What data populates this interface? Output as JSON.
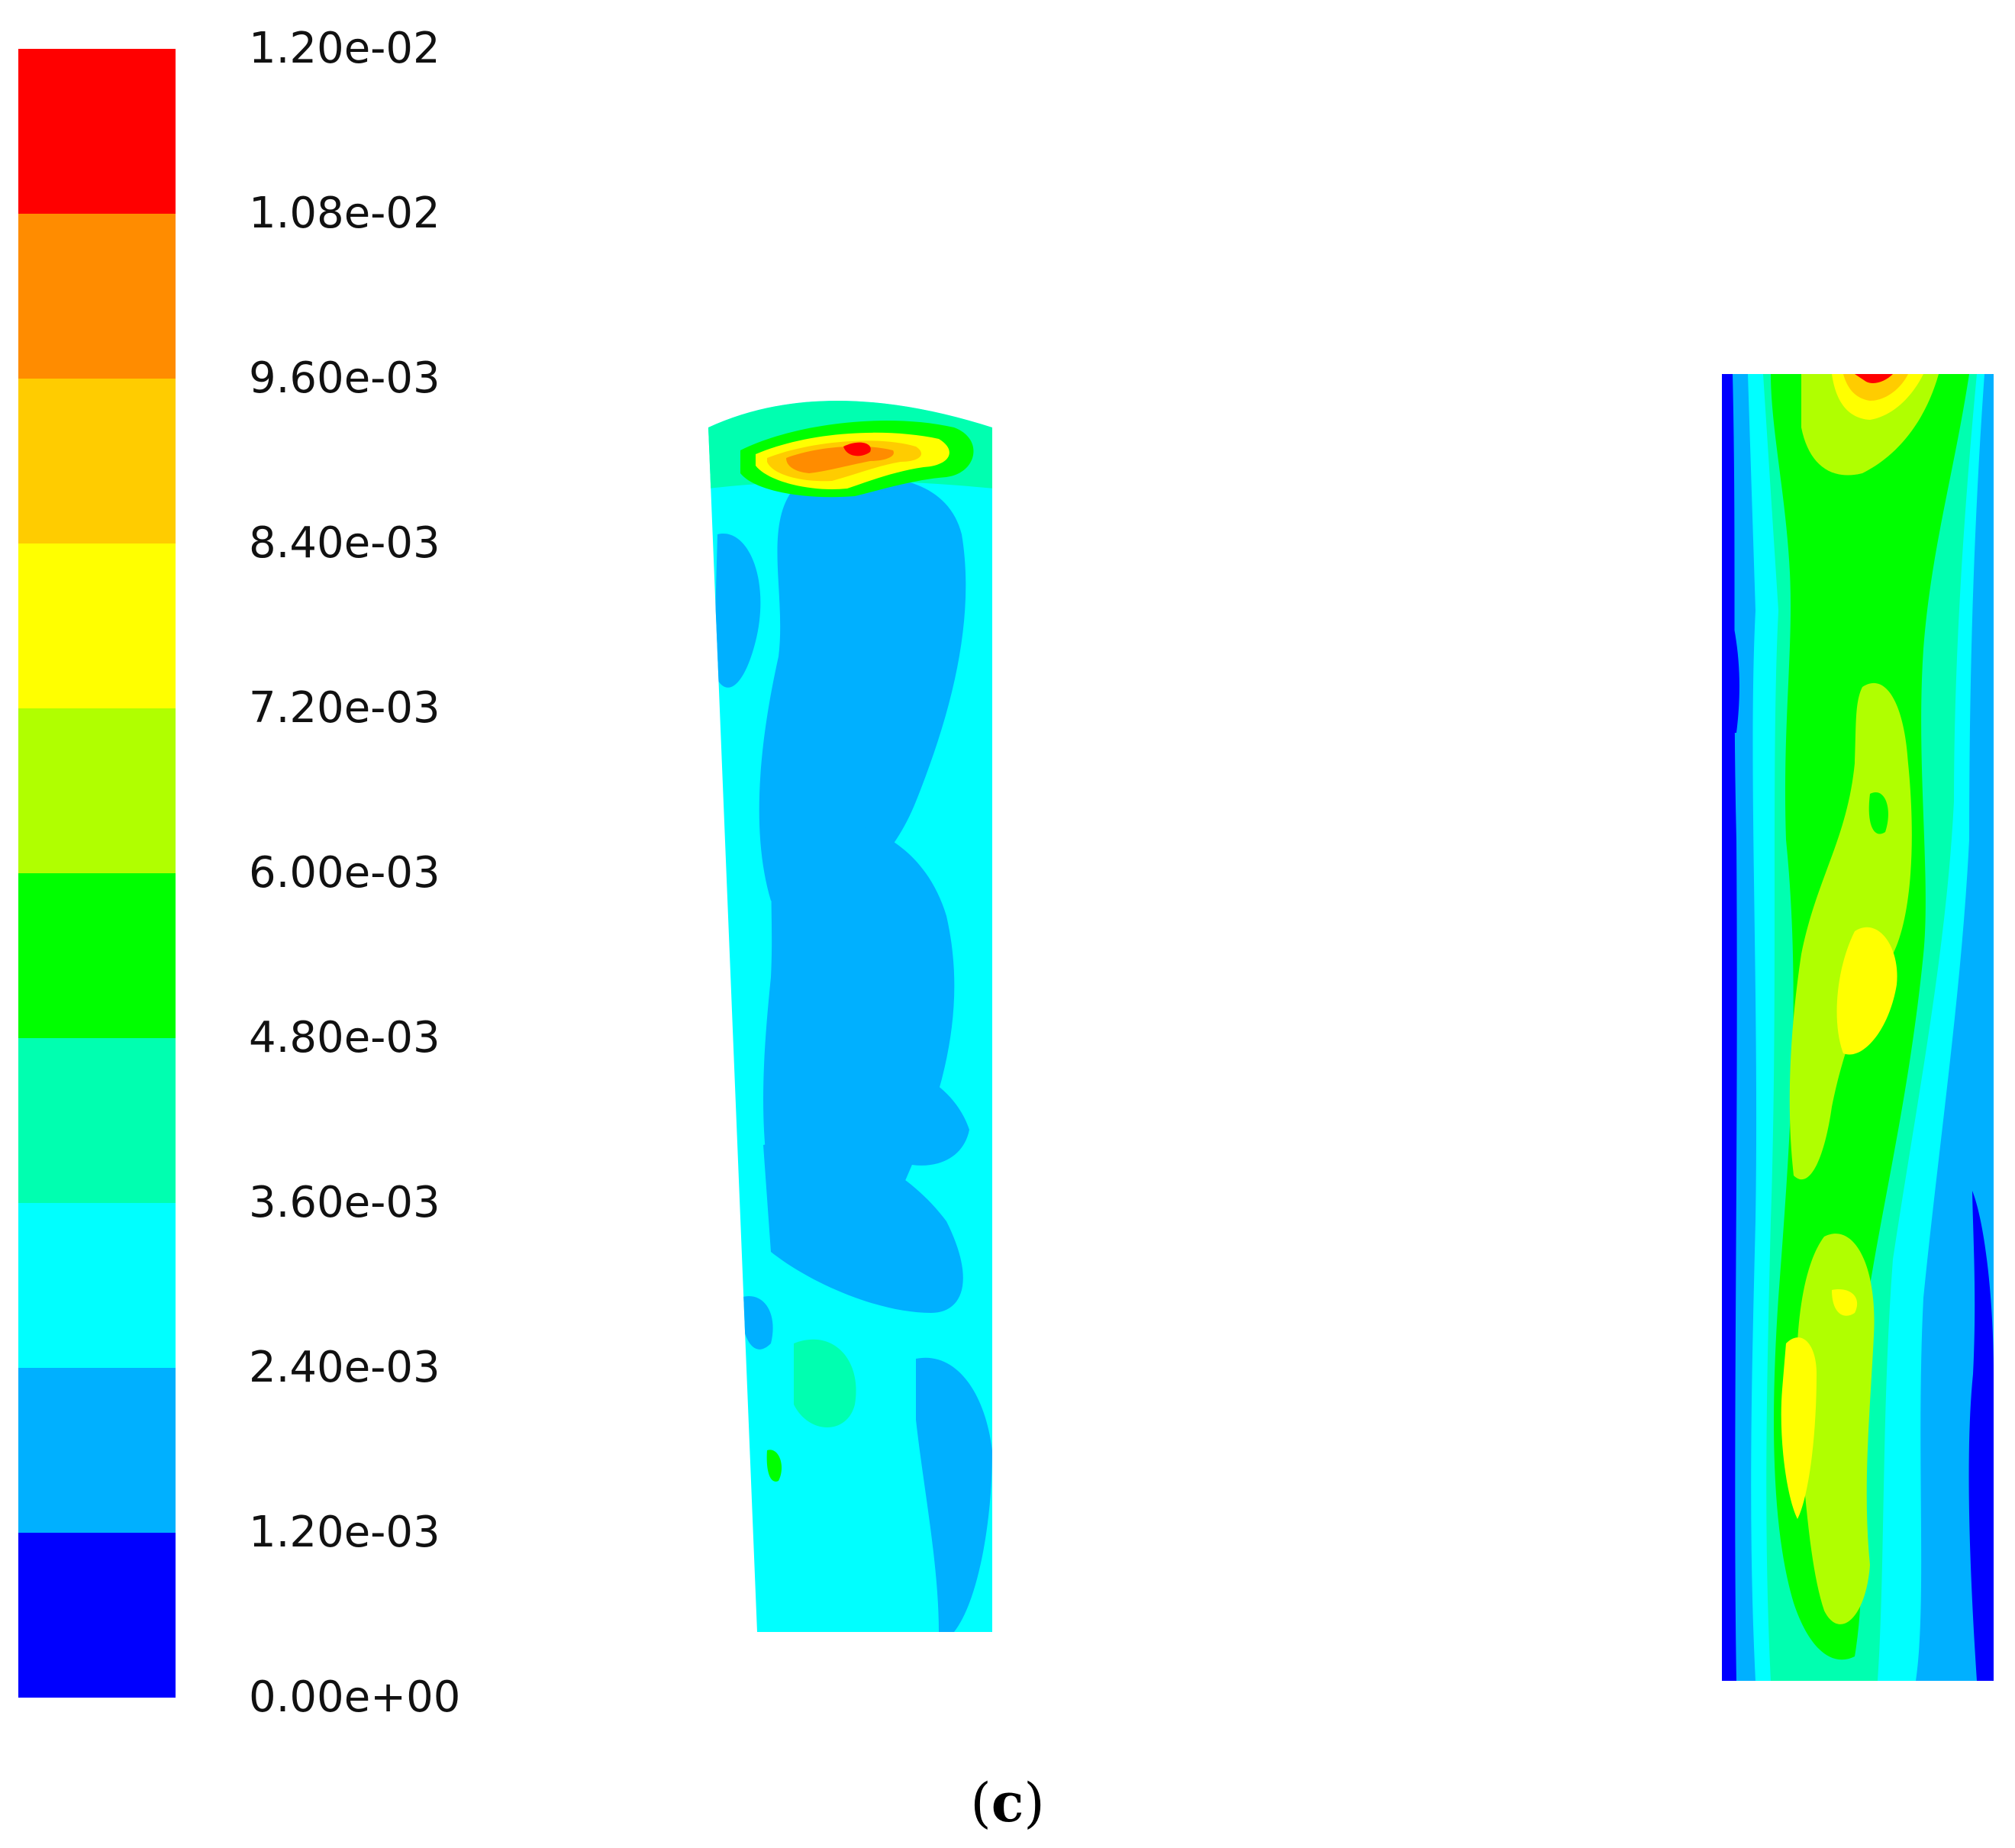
{
  "colorbar": {
    "colors": [
      "#0000ff",
      "#00b0ff",
      "#00ffff",
      "#00ffb0",
      "#00ff00",
      "#b0ff00",
      "#ffff00",
      "#ffcc00",
      "#ff8c00",
      "#ff0000"
    ],
    "labels": [
      "0.00e+00",
      "1.20e-03",
      "2.40e-03",
      "3.60e-03",
      "4.80e-03",
      "6.00e-03",
      "7.20e-03",
      "8.40e-03",
      "9.60e-03",
      "1.08e-02",
      "1.20e-02"
    ]
  },
  "caption": {
    "open": "(",
    "letter": "c",
    "close": ")"
  }
}
